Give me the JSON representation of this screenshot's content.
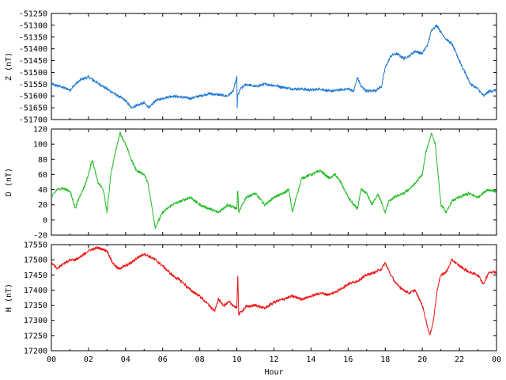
{
  "chart_data": [
    {
      "type": "line",
      "ylabel": "Z (nT)",
      "ylim": [
        -51700,
        -51250
      ],
      "yticks": [
        -51250,
        -51300,
        -51350,
        -51400,
        -51450,
        -51500,
        -51550,
        -51600,
        -51650,
        -51700
      ],
      "xlim": [
        0,
        24
      ],
      "grid": false,
      "series": [
        {
          "color": "#1f78d2",
          "x": [
            0,
            0.5,
            1,
            1.3,
            1.6,
            2,
            2.4,
            2.8,
            3.2,
            3.6,
            4,
            4.3,
            4.6,
            5,
            5.3,
            5.6,
            6,
            6.5,
            7,
            7.5,
            8,
            8.5,
            9,
            9.5,
            9.8,
            10,
            10.02,
            10.04,
            10.2,
            10.5,
            11,
            11.5,
            12,
            12.3,
            12.6,
            13,
            13.5,
            14,
            14.5,
            15,
            15.5,
            16,
            16.3,
            16.5,
            16.7,
            17,
            17.5,
            17.8,
            18,
            18.3,
            18.6,
            19,
            19.3,
            19.6,
            20,
            20.3,
            20.5,
            20.8,
            21,
            21.3,
            21.6,
            22,
            22.3,
            22.6,
            23,
            23.3,
            23.6,
            24
          ],
          "values": [
            -51550,
            -51560,
            -51575,
            -51550,
            -51530,
            -51520,
            -51540,
            -51560,
            -51580,
            -51600,
            -51620,
            -51650,
            -51640,
            -51630,
            -51650,
            -51620,
            -51610,
            -51600,
            -51605,
            -51610,
            -51600,
            -51590,
            -51595,
            -51600,
            -51580,
            -51520,
            -51650,
            -51600,
            -51570,
            -51550,
            -51560,
            -51550,
            -51555,
            -51560,
            -51565,
            -51570,
            -51570,
            -51575,
            -51570,
            -51580,
            -51575,
            -51570,
            -51580,
            -51520,
            -51560,
            -51580,
            -51575,
            -51560,
            -51480,
            -51430,
            -51420,
            -51440,
            -51430,
            -51410,
            -51420,
            -51380,
            -51320,
            -51300,
            -51330,
            -51360,
            -51380,
            -51450,
            -51500,
            -51550,
            -51570,
            -51600,
            -51580,
            -51575
          ]
        }
      ]
    },
    {
      "type": "line",
      "ylabel": "D (nT)",
      "ylim": [
        -20,
        120
      ],
      "yticks": [
        -20,
        0,
        20,
        40,
        60,
        80,
        100,
        120
      ],
      "xlim": [
        0,
        24
      ],
      "grid": false,
      "series": [
        {
          "color": "#22bb22",
          "x": [
            0,
            0.3,
            0.6,
            1,
            1.3,
            1.5,
            1.8,
            2,
            2.2,
            2.5,
            2.8,
            3,
            3.2,
            3.5,
            3.7,
            4,
            4.3,
            4.6,
            5,
            5.2,
            5.4,
            5.6,
            6,
            6.5,
            7,
            7.5,
            8,
            8.5,
            9,
            9.5,
            10,
            10.05,
            10.1,
            10.5,
            11,
            11.5,
            12,
            12.5,
            12.8,
            13,
            13.2,
            13.5,
            14,
            14.5,
            15,
            15.3,
            15.6,
            16,
            16.3,
            16.5,
            16.7,
            17,
            17.3,
            17.6,
            18,
            18.2,
            18.5,
            19,
            19.5,
            20,
            20.2,
            20.5,
            20.7,
            21,
            21.3,
            21.6,
            22,
            22.5,
            23,
            23.5,
            24
          ],
          "values": [
            30,
            40,
            42,
            38,
            15,
            30,
            45,
            60,
            80,
            50,
            40,
            10,
            60,
            95,
            115,
            100,
            80,
            65,
            60,
            50,
            20,
            -10,
            10,
            20,
            25,
            30,
            20,
            15,
            10,
            20,
            15,
            40,
            10,
            30,
            35,
            20,
            30,
            35,
            40,
            10,
            30,
            55,
            60,
            65,
            55,
            60,
            50,
            30,
            20,
            15,
            40,
            35,
            20,
            35,
            10,
            25,
            30,
            35,
            45,
            60,
            90,
            115,
            100,
            20,
            10,
            25,
            30,
            35,
            30,
            40,
            38
          ]
        }
      ]
    },
    {
      "type": "line",
      "ylabel": "H (nT)",
      "xlabel": "Hour",
      "ylim": [
        17200,
        17550
      ],
      "yticks": [
        17200,
        17250,
        17300,
        17350,
        17400,
        17450,
        17500,
        17550
      ],
      "xlim": [
        0,
        24
      ],
      "xticks": [
        "00",
        "02",
        "04",
        "06",
        "08",
        "10",
        "12",
        "14",
        "16",
        "18",
        "20",
        "22",
        "00"
      ],
      "grid": false,
      "series": [
        {
          "color": "#ee1111",
          "x": [
            0,
            0.3,
            0.6,
            1,
            1.3,
            1.6,
            2,
            2.5,
            3,
            3.3,
            3.6,
            4,
            4.3,
            4.6,
            5,
            5.3,
            5.6,
            6,
            6.5,
            7,
            7.5,
            8,
            8.5,
            8.8,
            9,
            9.3,
            9.6,
            10,
            10.05,
            10.1,
            10.5,
            11,
            11.5,
            12,
            12.5,
            13,
            13.5,
            14,
            14.5,
            15,
            15.5,
            16,
            16.5,
            17,
            17.5,
            17.8,
            18,
            18.3,
            18.6,
            19,
            19.3,
            19.6,
            20,
            20.2,
            20.4,
            20.6,
            20.8,
            21,
            21.3,
            21.6,
            22,
            22.5,
            23,
            23.3,
            23.6,
            24
          ],
          "values": [
            17490,
            17470,
            17485,
            17500,
            17500,
            17510,
            17530,
            17540,
            17530,
            17490,
            17470,
            17480,
            17490,
            17505,
            17520,
            17510,
            17500,
            17480,
            17450,
            17430,
            17400,
            17380,
            17350,
            17330,
            17370,
            17350,
            17360,
            17340,
            17450,
            17320,
            17345,
            17350,
            17340,
            17360,
            17370,
            17380,
            17370,
            17380,
            17390,
            17385,
            17400,
            17420,
            17430,
            17450,
            17460,
            17470,
            17490,
            17450,
            17420,
            17400,
            17390,
            17400,
            17350,
            17300,
            17250,
            17300,
            17400,
            17450,
            17460,
            17500,
            17480,
            17460,
            17450,
            17420,
            17460,
            17460
          ]
        }
      ]
    }
  ]
}
